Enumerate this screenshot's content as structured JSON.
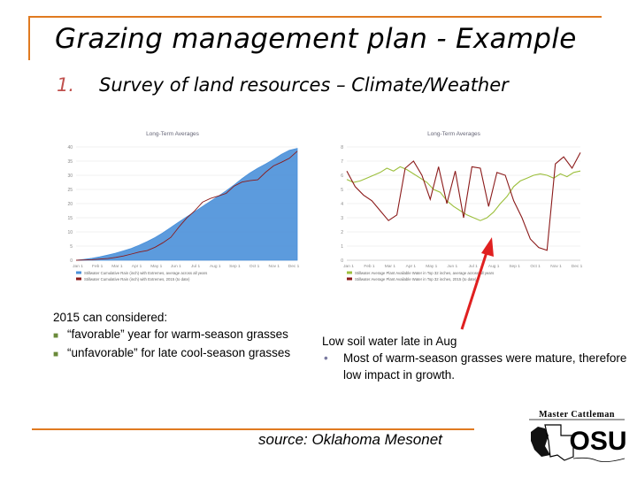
{
  "slide": {
    "title": "Grazing management plan - Example",
    "subtitle_number": "1.",
    "subtitle_text": "Survey of land resources – Climate/Weather"
  },
  "chart_data": [
    {
      "type": "area",
      "title": "Long-Term Averages",
      "series": [
        {
          "name": "Stillwater Cumulative Rain (inch) with Extremes, average across all years",
          "color": "#4a90d9",
          "values": [
            0.0,
            0.3,
            0.7,
            1.2,
            1.8,
            2.5,
            3.3,
            4.2,
            5.3,
            6.6,
            8.0,
            9.7,
            11.6,
            13.5,
            15.3,
            17.1,
            19.0,
            20.8,
            22.6,
            24.5,
            26.6,
            28.8,
            30.8,
            32.5,
            34.0,
            35.6,
            37.4,
            38.8,
            39.5
          ]
        },
        {
          "name": "Stillwater Cumulative Rain (inch) with Extremes, 2015 (to date)",
          "color": "#8b1a1a",
          "values": [
            0.0,
            0.1,
            0.2,
            0.4,
            0.6,
            1.0,
            1.5,
            2.2,
            2.9,
            3.4,
            4.6,
            6.2,
            8.1,
            11.7,
            14.9,
            17.4,
            20.5,
            21.8,
            22.7,
            23.6,
            26.2,
            27.6,
            28.1,
            28.4,
            31.1,
            33.3,
            34.6,
            36.0,
            38.5
          ]
        }
      ],
      "x_ticks": [
        "Jan 1",
        "Feb 1",
        "Mar 1",
        "Apr 1",
        "May 1",
        "Jun 1",
        "Jul 1",
        "Aug 1",
        "Sep 1",
        "Oct 1",
        "Nov 1",
        "Dec 1"
      ],
      "y_ticks": [
        "0",
        "5",
        "10",
        "15",
        "20",
        "25",
        "30",
        "35",
        "40"
      ],
      "ylim": [
        0,
        40
      ],
      "legend_position": "bottom"
    },
    {
      "type": "line",
      "title": "Long-Term Averages",
      "series": [
        {
          "name": "Stillwater Average Plant Available Water in Top 32 inches, average across all years",
          "color": "#9cbf3c",
          "values": [
            5.7,
            5.5,
            5.6,
            5.8,
            6.0,
            6.2,
            6.5,
            6.3,
            6.6,
            6.4,
            6.1,
            5.8,
            5.5,
            5.0,
            4.8,
            4.2,
            3.8,
            3.5,
            3.2,
            3.0,
            2.8,
            3.0,
            3.4,
            4.0,
            4.5,
            5.2,
            5.6,
            5.8,
            6.0,
            6.1,
            6.0,
            5.8,
            6.1,
            5.9,
            6.2,
            6.3
          ]
        },
        {
          "name": "Stillwater Average Plant Available Water in Top 32 inches, 2015 (to date)",
          "color": "#8b1a1a",
          "values": [
            6.3,
            5.2,
            4.6,
            4.2,
            3.5,
            2.8,
            3.2,
            6.5,
            7.0,
            6.0,
            4.3,
            6.6,
            4.0,
            6.3,
            3.0,
            6.6,
            6.5,
            3.8,
            6.2,
            6.0,
            4.2,
            3.0,
            1.5,
            0.9,
            0.7,
            6.8,
            7.3,
            6.5,
            7.6
          ]
        }
      ],
      "x_ticks": [
        "Jan 1",
        "Feb 1",
        "Mar 1",
        "Apr 1",
        "May 1",
        "Jun 1",
        "Jul 1",
        "Aug 1",
        "Sep 1",
        "Oct 1",
        "Nov 1",
        "Dec 1"
      ],
      "y_ticks": [
        "0",
        "1",
        "2",
        "3",
        "4",
        "5",
        "6",
        "7",
        "8"
      ],
      "ylim": [
        0,
        8
      ],
      "legend_position": "bottom"
    }
  ],
  "notes_left": {
    "heading": "2015 can considered:",
    "items": [
      "“favorable” year for warm-season grasses",
      "“unfavorable” for late cool-season grasses"
    ],
    "bullet_color": "#6a8a3a"
  },
  "notes_right": {
    "heading": "Low soil water late in Aug",
    "items": [
      "Most of warm-season grasses were mature, therefore low impact in growth."
    ]
  },
  "source": "source: Oklahoma Mesonet",
  "logo": {
    "line1": "Master Cattleman",
    "line2": "OSU"
  },
  "colors": {
    "accent": "#e07a20",
    "arrow": "#e02020"
  }
}
